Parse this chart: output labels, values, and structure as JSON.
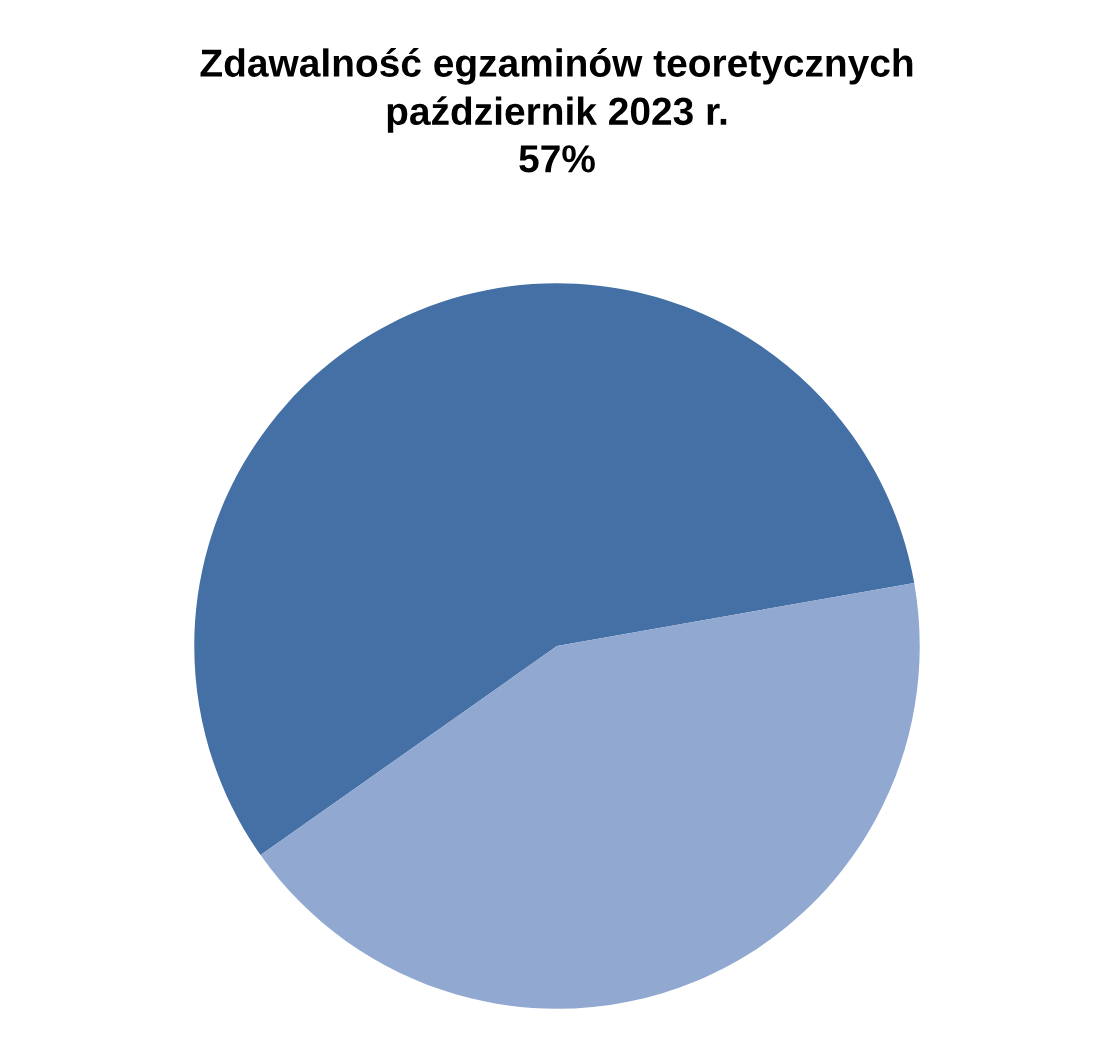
{
  "chart_data": {
    "type": "pie",
    "title": "Zdawalność egzaminów teoretycznych\npaździernik 2023 r.\n57%",
    "categories": [
      null,
      null
    ],
    "values": [
      57,
      43
    ],
    "colors": [
      "#4470a6",
      "#91a8d0"
    ]
  }
}
